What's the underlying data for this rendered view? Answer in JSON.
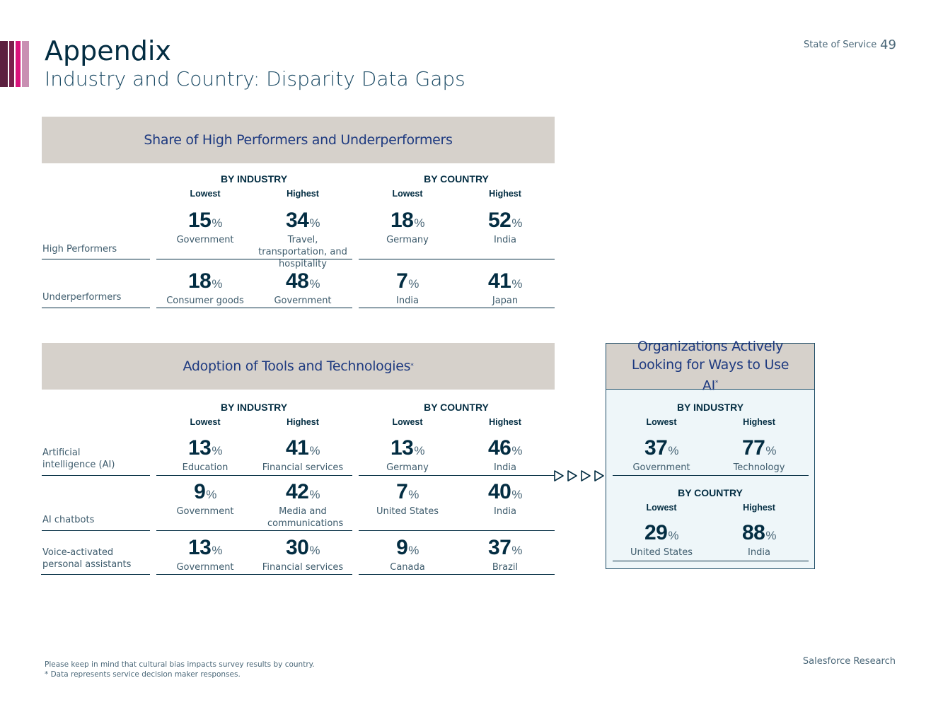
{
  "header": {
    "title": "Appendix",
    "subtitle": "Industry and Country: Disparity Data Gaps",
    "report_name": "State of Service",
    "page_number": "49",
    "accent_colors": [
      "#5c1f3f",
      "#d9127b",
      "#b77ea1"
    ]
  },
  "groups": {
    "industry": "BY INDUSTRY",
    "country": "BY COUNTRY",
    "lowest": "Lowest",
    "highest": "Highest"
  },
  "pct_symbol": "%",
  "performers": {
    "title": "Share of High Performers and Underperformers",
    "rows": [
      {
        "label": "High Performers",
        "cells": [
          {
            "value": "15",
            "label": "Government"
          },
          {
            "value": "34",
            "label": "Travel, transportation, and hospitality"
          },
          {
            "value": "18",
            "label": "Germany"
          },
          {
            "value": "52",
            "label": "India"
          }
        ]
      },
      {
        "label": "Underperformers",
        "cells": [
          {
            "value": "18",
            "label": "Consumer goods"
          },
          {
            "value": "48",
            "label": "Government"
          },
          {
            "value": "7",
            "label": "India"
          },
          {
            "value": "41",
            "label": "Japan"
          }
        ]
      }
    ]
  },
  "adoption": {
    "title": "Adoption of Tools and Technologies",
    "title_mark": "*",
    "rows": [
      {
        "label": "Artificial intelligence (AI)",
        "cells": [
          {
            "value": "13",
            "label": "Education"
          },
          {
            "value": "41",
            "label": "Financial services"
          },
          {
            "value": "13",
            "label": "Germany"
          },
          {
            "value": "46",
            "label": "India"
          }
        ]
      },
      {
        "label": "AI chatbots",
        "cells": [
          {
            "value": "9",
            "label": "Government"
          },
          {
            "value": "42",
            "label": "Media and communications"
          },
          {
            "value": "7",
            "label": "United States"
          },
          {
            "value": "40",
            "label": "India"
          }
        ]
      },
      {
        "label": "Voice-activated personal assistants",
        "cells": [
          {
            "value": "13",
            "label": "Government"
          },
          {
            "value": "30",
            "label": "Financial services"
          },
          {
            "value": "9",
            "label": "Canada"
          },
          {
            "value": "37",
            "label": "Brazil"
          }
        ]
      }
    ]
  },
  "ai_orgs": {
    "title": "Organizations Actively Looking for Ways to Use AI",
    "title_mark": "*",
    "industry": [
      {
        "value": "37",
        "label": "Government"
      },
      {
        "value": "77",
        "label": "Technology"
      }
    ],
    "country": [
      {
        "value": "29",
        "label": "United States"
      },
      {
        "value": "88",
        "label": "India"
      }
    ]
  },
  "footer": {
    "note_1": "Please keep in mind that cultural bias impacts survey results by country.",
    "note_2": "* Data represents service decision maker responses.",
    "brand": "Salesforce Research"
  }
}
